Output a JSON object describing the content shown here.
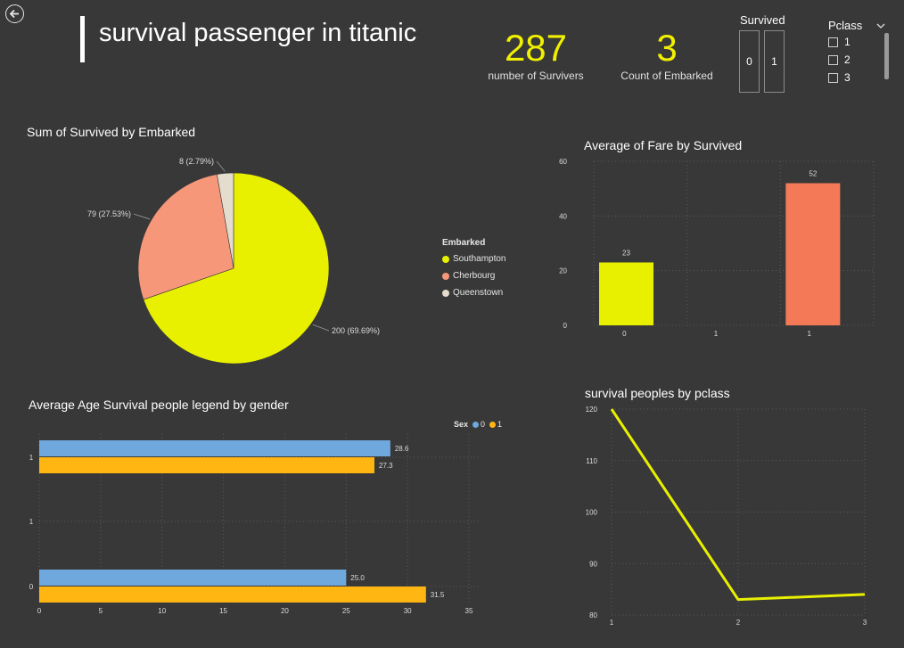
{
  "header": {
    "title": "survival passenger in titanic",
    "back_icon": "back-arrow-icon"
  },
  "kpis": [
    {
      "value": "287",
      "label": "number of Survivers"
    },
    {
      "value": "3",
      "label": "Count of Embarked"
    }
  ],
  "survived_slicer": {
    "title": "Survived",
    "options": [
      "0",
      "1"
    ]
  },
  "pclass_slicer": {
    "title": "Pclass",
    "options": [
      "1",
      "2",
      "3"
    ],
    "chevron_icon": "chevron-down-icon"
  },
  "colors": {
    "background": "#383838",
    "accent_yellow": "#f0f000",
    "southampton": "#e8f000",
    "cherbourg": "#f7977a",
    "queenstown": "#e4dccd",
    "survived_1": "#f47a57",
    "sex_0": "#6fa8dc",
    "sex_1": "#ffb512"
  },
  "chart_data": [
    {
      "type": "pie",
      "title": "Sum of Survived by Embarked",
      "legend_title": "Embarked",
      "legend_position": "right",
      "slices": [
        {
          "name": "Southampton",
          "value": 200,
          "label": "200 (69.69%)"
        },
        {
          "name": "Cherbourg",
          "value": 79,
          "label": "79 (27.53%)"
        },
        {
          "name": "Queenstown",
          "value": 8,
          "label": "8 (2.79%)"
        }
      ]
    },
    {
      "type": "bar",
      "title": "Average of Fare by Survived",
      "categories": [
        "0",
        "1",
        "1"
      ],
      "values": [
        23,
        null,
        52
      ],
      "data_labels": [
        "23",
        "",
        "52"
      ],
      "ylim": [
        0,
        60
      ],
      "yticks": [
        "0",
        "20",
        "40",
        "60"
      ],
      "grid": true
    },
    {
      "type": "bar",
      "orientation": "horizontal",
      "title": "Average Age Survival people legend by gender",
      "legend_title": "Sex",
      "legend_position": "top-right",
      "categories": [
        "1",
        "1",
        "0"
      ],
      "series": [
        {
          "name": "0",
          "values": [
            28.6,
            null,
            25.0
          ],
          "labels": [
            "28.6",
            "",
            "25.0"
          ]
        },
        {
          "name": "1",
          "values": [
            27.3,
            null,
            31.5
          ],
          "labels": [
            "27.3",
            "",
            "31.5"
          ]
        }
      ],
      "xlim": [
        0,
        35
      ],
      "xticks": [
        "0",
        "5",
        "10",
        "15",
        "20",
        "25",
        "30",
        "35"
      ],
      "grid": true
    },
    {
      "type": "line",
      "title": "survival peoples by pclass",
      "x": [
        "1",
        "2",
        "3"
      ],
      "values": [
        120,
        83,
        84
      ],
      "ylim": [
        80,
        120
      ],
      "yticks": [
        "80",
        "90",
        "100",
        "110",
        "120"
      ],
      "grid": true
    }
  ]
}
